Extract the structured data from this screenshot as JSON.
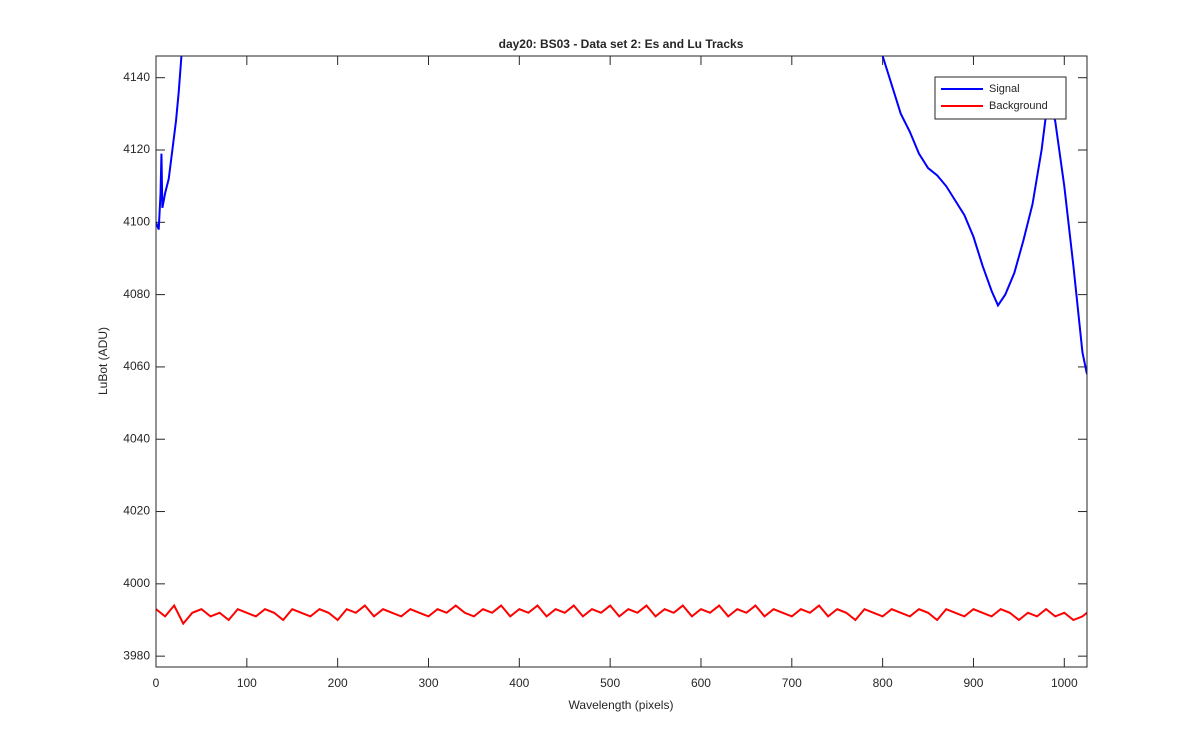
{
  "chart_data": {
    "type": "line",
    "title": "day20: BS03 - Data set 2: Es and Lu Tracks",
    "xlabel": "Wavelength (pixels)",
    "ylabel": "LuBot (ADU)",
    "xlim": [
      0,
      1025
    ],
    "ylim": [
      3977,
      4146
    ],
    "xticks": [
      0,
      100,
      200,
      300,
      400,
      500,
      600,
      700,
      800,
      900,
      1000
    ],
    "yticks": [
      3980,
      4000,
      4020,
      4040,
      4060,
      4080,
      4100,
      4120,
      4140
    ],
    "legend": "top-right",
    "series": [
      {
        "name": "Signal",
        "color": "#0000ff",
        "x": [
          0,
          3,
          5,
          6,
          7,
          10,
          14,
          18,
          22,
          25,
          28,
          400,
          800,
          810,
          820,
          830,
          840,
          850,
          860,
          870,
          880,
          890,
          900,
          910,
          920,
          927,
          935,
          945,
          955,
          965,
          975,
          980,
          985,
          990,
          1000,
          1010,
          1020,
          1025
        ],
        "values": [
          4100,
          4098,
          4108,
          4119,
          4104,
          4108,
          4112,
          4120,
          4128,
          4136,
          4146,
          null,
          4146,
          4138,
          4130,
          4125,
          4119,
          4115,
          4113,
          4110,
          4106,
          4102,
          4096,
          4088,
          4081,
          4077,
          4080,
          4086,
          4095,
          4105,
          4120,
          4130,
          4132,
          4128,
          4110,
          4088,
          4064,
          4058
        ]
      },
      {
        "name": "Background",
        "color": "#ff0000",
        "x": [
          0,
          10,
          20,
          30,
          40,
          50,
          60,
          70,
          80,
          90,
          100,
          110,
          120,
          130,
          140,
          150,
          160,
          170,
          180,
          190,
          200,
          210,
          220,
          230,
          240,
          250,
          260,
          270,
          280,
          290,
          300,
          310,
          320,
          330,
          340,
          350,
          360,
          370,
          380,
          390,
          400,
          410,
          420,
          430,
          440,
          450,
          460,
          470,
          480,
          490,
          500,
          510,
          520,
          530,
          540,
          550,
          560,
          570,
          580,
          590,
          600,
          610,
          620,
          630,
          640,
          650,
          660,
          670,
          680,
          690,
          700,
          710,
          720,
          730,
          740,
          750,
          760,
          770,
          780,
          790,
          800,
          810,
          820,
          830,
          840,
          850,
          860,
          870,
          880,
          890,
          900,
          910,
          920,
          930,
          940,
          950,
          960,
          970,
          980,
          990,
          1000,
          1010,
          1020,
          1025
        ],
        "values": [
          3993,
          3991,
          3994,
          3989,
          3992,
          3993,
          3991,
          3992,
          3990,
          3993,
          3992,
          3991,
          3993,
          3992,
          3990,
          3993,
          3992,
          3991,
          3993,
          3992,
          3990,
          3993,
          3992,
          3994,
          3991,
          3993,
          3992,
          3991,
          3993,
          3992,
          3991,
          3993,
          3992,
          3994,
          3992,
          3991,
          3993,
          3992,
          3994,
          3991,
          3993,
          3992,
          3994,
          3991,
          3993,
          3992,
          3994,
          3991,
          3993,
          3992,
          3994,
          3991,
          3993,
          3992,
          3994,
          3991,
          3993,
          3992,
          3994,
          3991,
          3993,
          3992,
          3994,
          3991,
          3993,
          3992,
          3994,
          3991,
          3993,
          3992,
          3991,
          3993,
          3992,
          3994,
          3991,
          3993,
          3992,
          3990,
          3993,
          3992,
          3991,
          3993,
          3992,
          3991,
          3993,
          3992,
          3990,
          3993,
          3992,
          3991,
          3993,
          3992,
          3991,
          3993,
          3992,
          3990,
          3992,
          3991,
          3993,
          3991,
          3992,
          3990,
          3991,
          3992
        ]
      }
    ]
  }
}
